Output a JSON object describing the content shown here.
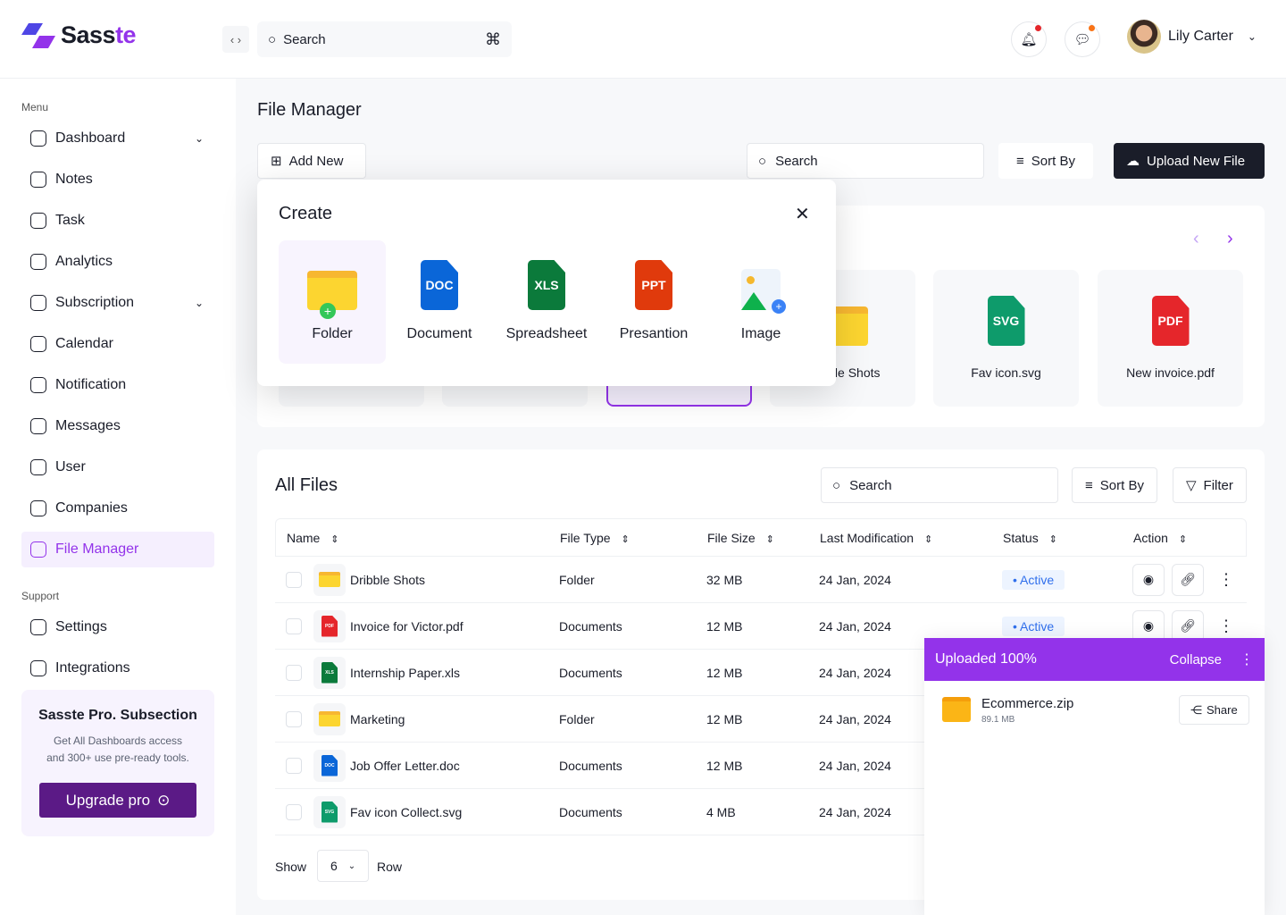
{
  "brand": {
    "name_a": "Sass",
    "name_b": "te",
    "accent": "#9333ea"
  },
  "header": {
    "search_placeholder": "Search",
    "user_name": "Lily Carter"
  },
  "sidebar": {
    "menu_label": "Menu",
    "support_label": "Support",
    "items": [
      {
        "label": "Dashboard",
        "icon": "pie-icon",
        "chevron": true
      },
      {
        "label": "Notes",
        "icon": "notes-icon"
      },
      {
        "label": "Task",
        "icon": "task-icon"
      },
      {
        "label": "Analytics",
        "icon": "analytics-icon"
      },
      {
        "label": "Subscription",
        "icon": "subscription-icon",
        "chevron": true
      },
      {
        "label": "Calendar",
        "icon": "calendar-icon"
      },
      {
        "label": "Notification",
        "icon": "bell-icon"
      },
      {
        "label": "Messages",
        "icon": "message-icon"
      },
      {
        "label": "User",
        "icon": "users-icon"
      },
      {
        "label": "Companies",
        "icon": "companies-icon"
      },
      {
        "label": "File Manager",
        "icon": "folder-icon",
        "active": true
      }
    ],
    "support": [
      {
        "label": "Settings",
        "icon": "gear-icon"
      },
      {
        "label": "Integrations",
        "icon": "integrations-icon"
      }
    ],
    "promo": {
      "title": "Sasste Pro. Subsection",
      "line1": "Get All Dashboards access",
      "line2": "and 300+ use pre-ready tools.",
      "button": "Upgrade pro"
    }
  },
  "page": {
    "title": "File Manager",
    "add_new": "Add New",
    "search_placeholder": "Search",
    "sort_by": "Sort By",
    "upload": "Upload New File"
  },
  "recent": [
    {
      "name": ""
    },
    {
      "name": ""
    },
    {
      "name": ""
    },
    {
      "name": "Dribble Shots",
      "type": "folder"
    },
    {
      "name": "Fav icon.svg",
      "type": "SVG",
      "color": "#0e9b6b"
    },
    {
      "name": "New invoice.pdf",
      "type": "PDF",
      "color": "#e5262b"
    }
  ],
  "create": {
    "title": "Create",
    "items": [
      {
        "label": "Folder"
      },
      {
        "label": "Document",
        "tag": "DOC",
        "color": "#0a66d8"
      },
      {
        "label": "Spreadsheet",
        "tag": "XLS",
        "color": "#0b7a3b"
      },
      {
        "label": "Presantion",
        "tag": "PPT",
        "color": "#e03a0c"
      },
      {
        "label": "Image"
      }
    ]
  },
  "all_files": {
    "title": "All Files",
    "search_placeholder": "Search",
    "sort_by": "Sort By",
    "filter": "Filter",
    "columns": [
      "Name",
      "File Type",
      "File Size",
      "Last Modification",
      "Status",
      "Action"
    ],
    "rows": [
      {
        "name": "Dribble Shots",
        "kind": "folder",
        "type": "Folder",
        "size": "32 MB",
        "date": "24 Jan, 2024",
        "status": "Active"
      },
      {
        "name": "Invoice for Victor.pdf",
        "kind": "PDF",
        "color": "#e5262b",
        "type": "Documents",
        "size": "12 MB",
        "date": "24 Jan, 2024",
        "status": "Active"
      },
      {
        "name": "Internship Paper.xls",
        "kind": "XLS",
        "color": "#0b7a3b",
        "type": "Documents",
        "size": "12 MB",
        "date": "24 Jan, 2024"
      },
      {
        "name": "Marketing",
        "kind": "folder",
        "type": "Folder",
        "size": "12 MB",
        "date": "24 Jan, 2024"
      },
      {
        "name": "Job Offer Letter.doc",
        "kind": "DOC",
        "color": "#0a66d8",
        "type": "Documents",
        "size": "12 MB",
        "date": "24 Jan, 2024"
      },
      {
        "name": "Fav icon Collect.svg",
        "kind": "SVG",
        "color": "#0e9b6b",
        "type": "Documents",
        "size": "4 MB",
        "date": "24 Jan, 2024"
      }
    ],
    "show_label": "Show",
    "rows_value": "6",
    "row_label": "Row"
  },
  "upload_panel": {
    "title": "Uploaded 100%",
    "collapse": "Collapse",
    "file": "Ecommerce.zip",
    "size": "89.1 MB",
    "share": "Share",
    "progress": 100
  }
}
